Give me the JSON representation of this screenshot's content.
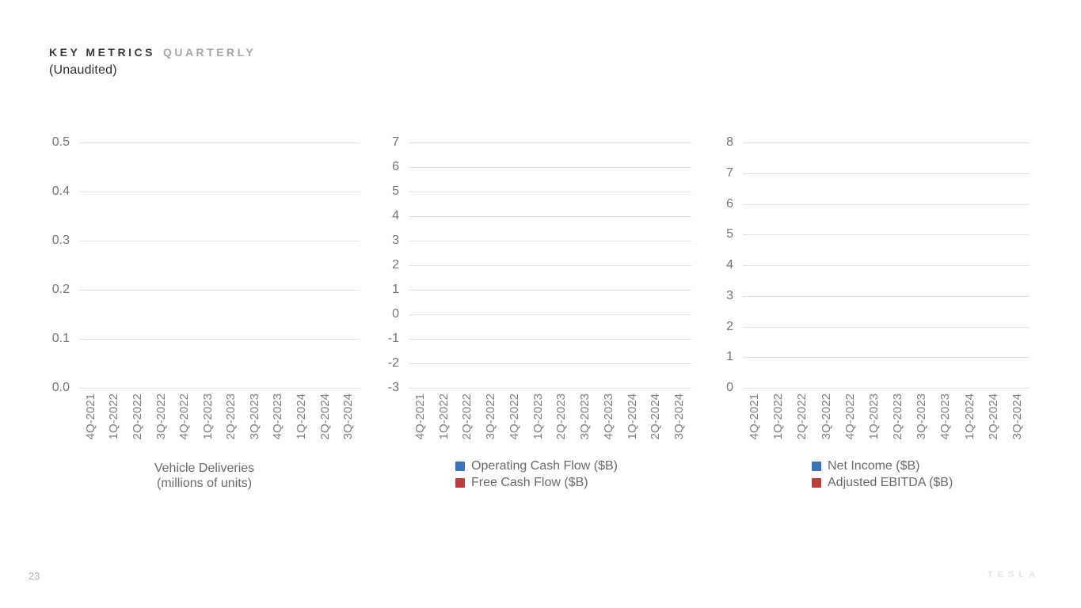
{
  "header": {
    "title_primary": "KEY METRICS",
    "title_secondary": "QUARTERLY",
    "subtitle": "(Unaudited)"
  },
  "footer": {
    "page_number": "23",
    "brand_logo": "TESLA"
  },
  "colors": {
    "series_blue": "#3b72b8",
    "series_red": "#b63f3f",
    "gridline": "#e2e2e2",
    "axis_label": "#7a7a7a",
    "legend_text": "#6a6a6a"
  },
  "chart_data": [
    {
      "type": "bar",
      "name": "vehicle-deliveries",
      "title": "Vehicle Deliveries (millions of units)",
      "categories": [
        "4Q-2021",
        "1Q-2022",
        "2Q-2022",
        "3Q-2022",
        "4Q-2022",
        "1Q-2023",
        "2Q-2023",
        "3Q-2023",
        "4Q-2023",
        "1Q-2024",
        "2Q-2024",
        "3Q-2024"
      ],
      "yticks": [
        "0.5",
        "0.4",
        "0.3",
        "0.2",
        "0.1",
        "0.0"
      ],
      "ylim": [
        0.0,
        0.5
      ],
      "grid": true,
      "legend_position": "bottom-center",
      "legend_lines": [
        "Vehicle Deliveries",
        "(millions of units)"
      ],
      "series": [
        {
          "name": "Vehicle Deliveries (millions of units)",
          "values": []
        }
      ]
    },
    {
      "type": "bar",
      "name": "cash-flow",
      "title": "Operating Cash Flow / Free Cash Flow",
      "categories": [
        "4Q-2021",
        "1Q-2022",
        "2Q-2022",
        "3Q-2022",
        "4Q-2022",
        "1Q-2023",
        "2Q-2023",
        "3Q-2023",
        "4Q-2023",
        "1Q-2024",
        "2Q-2024",
        "3Q-2024"
      ],
      "yticks": [
        "7",
        "6",
        "5",
        "4",
        "3",
        "2",
        "1",
        "0",
        "-1",
        "-2",
        "-3"
      ],
      "ylim": [
        -3,
        7
      ],
      "grid": true,
      "legend_position": "bottom-left",
      "legend": [
        {
          "label": "Operating Cash Flow ($B)",
          "color": "#3b72b8"
        },
        {
          "label": "Free Cash Flow ($B)",
          "color": "#b63f3f"
        }
      ],
      "series": [
        {
          "name": "Operating Cash Flow ($B)",
          "color": "#3b72b8",
          "values": []
        },
        {
          "name": "Free Cash Flow ($B)",
          "color": "#b63f3f",
          "values": []
        }
      ]
    },
    {
      "type": "bar",
      "name": "profitability",
      "title": "Net Income / Adjusted EBITDA",
      "categories": [
        "4Q-2021",
        "1Q-2022",
        "2Q-2022",
        "3Q-2022",
        "4Q-2022",
        "1Q-2023",
        "2Q-2023",
        "3Q-2023",
        "4Q-2023",
        "1Q-2024",
        "2Q-2024",
        "3Q-2024"
      ],
      "yticks": [
        "8",
        "7",
        "6",
        "5",
        "4",
        "3",
        "2",
        "1",
        "0"
      ],
      "ylim": [
        0,
        8
      ],
      "grid": true,
      "legend_position": "bottom-left",
      "legend": [
        {
          "label": "Net Income ($B)",
          "color": "#3b72b8"
        },
        {
          "label": "Adjusted EBITDA ($B)",
          "color": "#b63f3f"
        }
      ],
      "series": [
        {
          "name": "Net Income ($B)",
          "color": "#3b72b8",
          "values": []
        },
        {
          "name": "Adjusted EBITDA ($B)",
          "color": "#b63f3f",
          "values": []
        }
      ]
    }
  ]
}
